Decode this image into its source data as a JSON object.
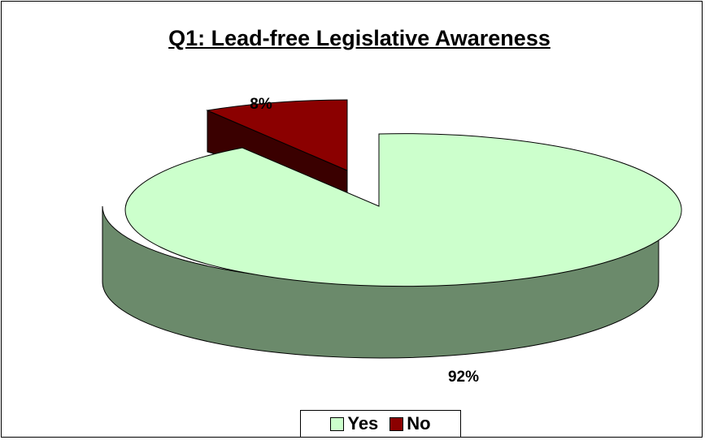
{
  "chart_data": {
    "type": "pie",
    "title": "Q1: Lead-free Legislative Awareness",
    "slices": [
      {
        "name": "Yes",
        "value": 92,
        "label": "92%",
        "color": "#ccffcc",
        "side_color": "#6b8a6b"
      },
      {
        "name": "No",
        "value": 8,
        "label": "8%",
        "color": "#8b0000",
        "side_color": "#3a0000"
      }
    ],
    "style": "3d-exploded",
    "legend_position": "bottom"
  }
}
